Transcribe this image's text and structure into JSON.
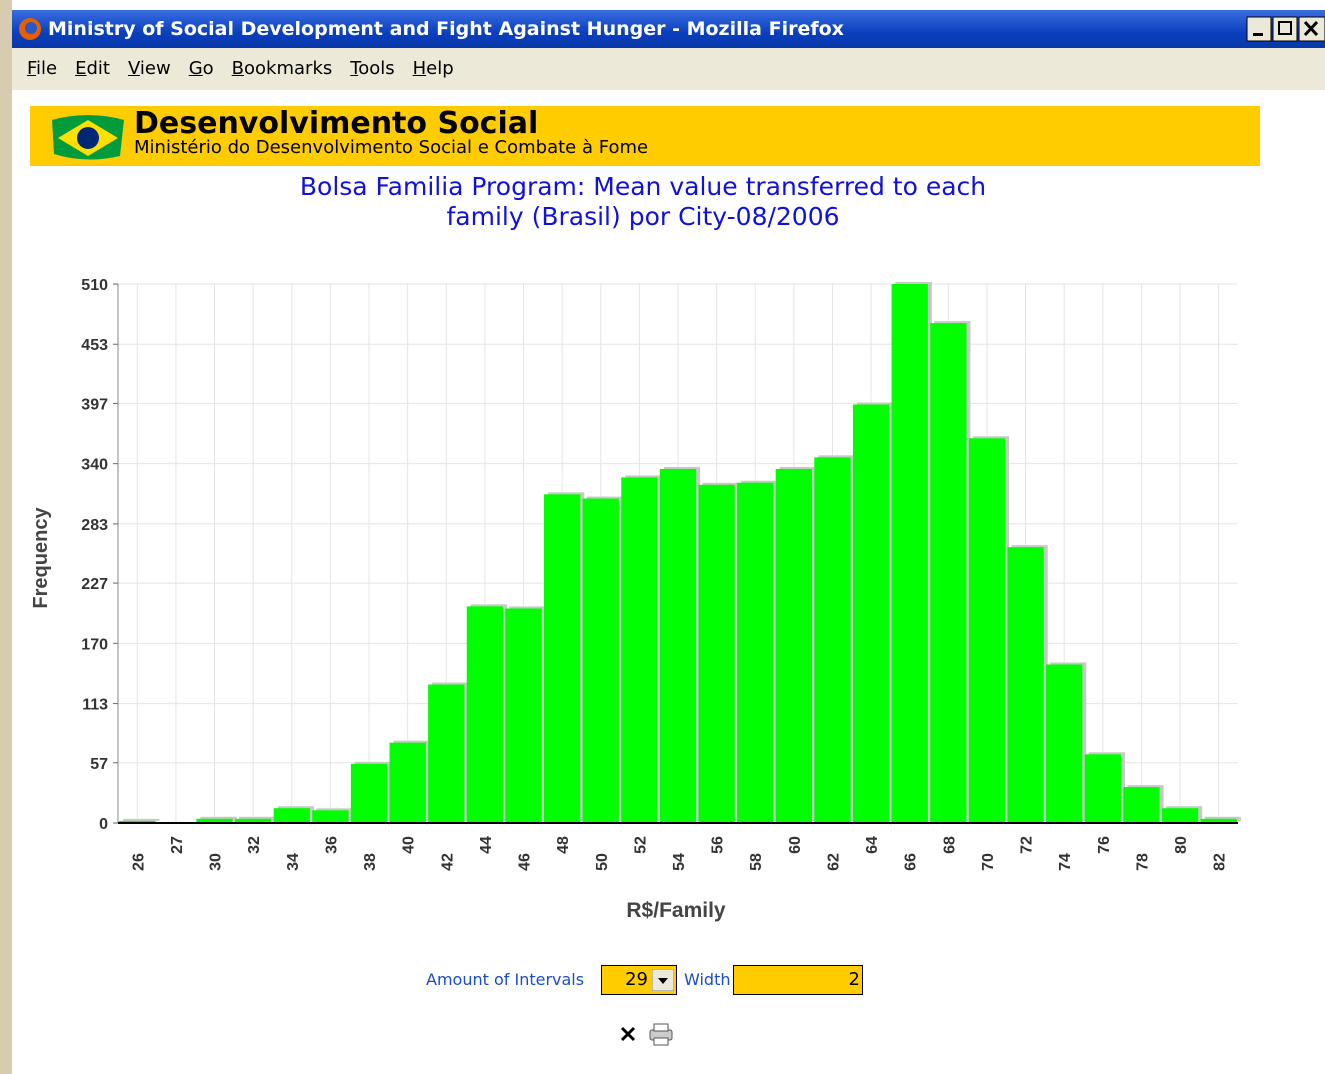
{
  "window": {
    "title": "Ministry of Social Development and Fight Against Hunger - Mozilla Firefox"
  },
  "menu": [
    "File",
    "Edit",
    "View",
    "Go",
    "Bookmarks",
    "Tools",
    "Help"
  ],
  "banner": {
    "title": "Desenvolvimento Social",
    "subtitle": "Ministério do Desenvolvimento Social e Combate à Fome"
  },
  "chart_data": {
    "type": "bar",
    "title": [
      "Bolsa Familia Program: Mean value transferred to each",
      "family (Brasil) por City-08/2006"
    ],
    "x_label": "R$/Family",
    "y_label": "Frequency",
    "categories": [
      "26",
      "27",
      "30",
      "32",
      "34",
      "36",
      "38",
      "40",
      "42",
      "44",
      "46",
      "48",
      "50",
      "52",
      "54",
      "56",
      "58",
      "60",
      "62",
      "64",
      "66",
      "68",
      "70",
      "72",
      "74",
      "76",
      "78",
      "80",
      "82"
    ],
    "values": [
      2,
      0,
      4,
      4,
      14,
      12,
      56,
      76,
      131,
      205,
      203,
      311,
      307,
      327,
      335,
      320,
      322,
      335,
      346,
      396,
      510,
      473,
      364,
      261,
      150,
      65,
      34,
      14,
      4
    ],
    "color": "#00ff00",
    "ylim": [
      0,
      510
    ],
    "yticks": [
      0,
      57,
      113,
      170,
      227,
      283,
      340,
      397,
      453,
      510
    ],
    "grid": true
  },
  "controls": {
    "intervals_label": "Amount of Intervals",
    "intervals_value": "29",
    "width_label": "Width",
    "width_value": "2"
  }
}
